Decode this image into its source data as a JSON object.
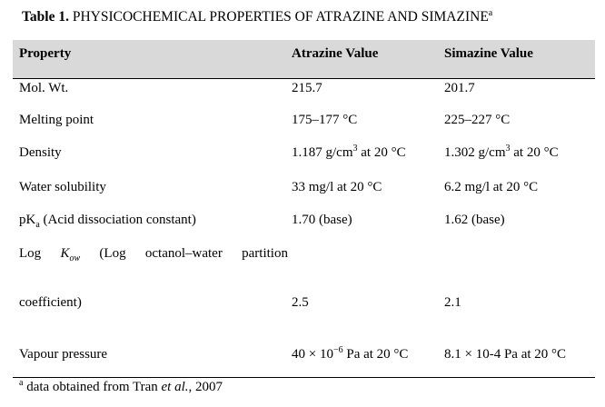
{
  "caption": {
    "label": "Table 1.",
    "title": "PHYSICOCHEMICAL PROPERTIES OF ATRAZINE AND SIMAZINE",
    "marker": "a"
  },
  "table": {
    "headers": [
      "Property",
      "Atrazine Value",
      "Simazine Value"
    ],
    "rows": {
      "mol_wt": {
        "property": "Mol. Wt.",
        "atrazine": "215.7",
        "simazine": "201.7"
      },
      "melting": {
        "property": "Melting point",
        "atrazine": "175–177 °C",
        "simazine": "225–227 °C"
      },
      "density": {
        "property": "Density",
        "atrazine": {
          "pre": "1.187 g/cm",
          "sup": "3",
          "post": " at 20 °C"
        },
        "simazine": {
          "pre": "1.302 g/cm",
          "sup": "3",
          "post": " at 20 °C"
        }
      },
      "solubility": {
        "property": "Water solubility",
        "atrazine": "33 mg/l at 20 °C",
        "simazine": "6.2 mg/l at 20 °C"
      },
      "pka": {
        "property_pre": "pK",
        "property_sub": "a",
        "property_post": " (Acid dissociation constant)",
        "atrazine": "1.70 (base)",
        "simazine": "1.62 (base)"
      },
      "logkow": {
        "words": [
          "Log",
          "(Log",
          "octanol–water",
          "partition"
        ],
        "k": "K",
        "k_sub": "ow",
        "line2": "coefficient)",
        "atrazine": "2.5",
        "simazine": "2.1"
      },
      "vapour": {
        "property": "Vapour pressure",
        "atrazine": {
          "pre": "40 × 10",
          "sup": "−6",
          "post": " Pa at 20 °C"
        },
        "simazine": "8.1 × 10-4 Pa at 20 °C"
      }
    }
  },
  "footnote": {
    "marker": "a",
    "text": " data obtained from Tran ",
    "italic": "et al.",
    "tail": ", 2007"
  }
}
